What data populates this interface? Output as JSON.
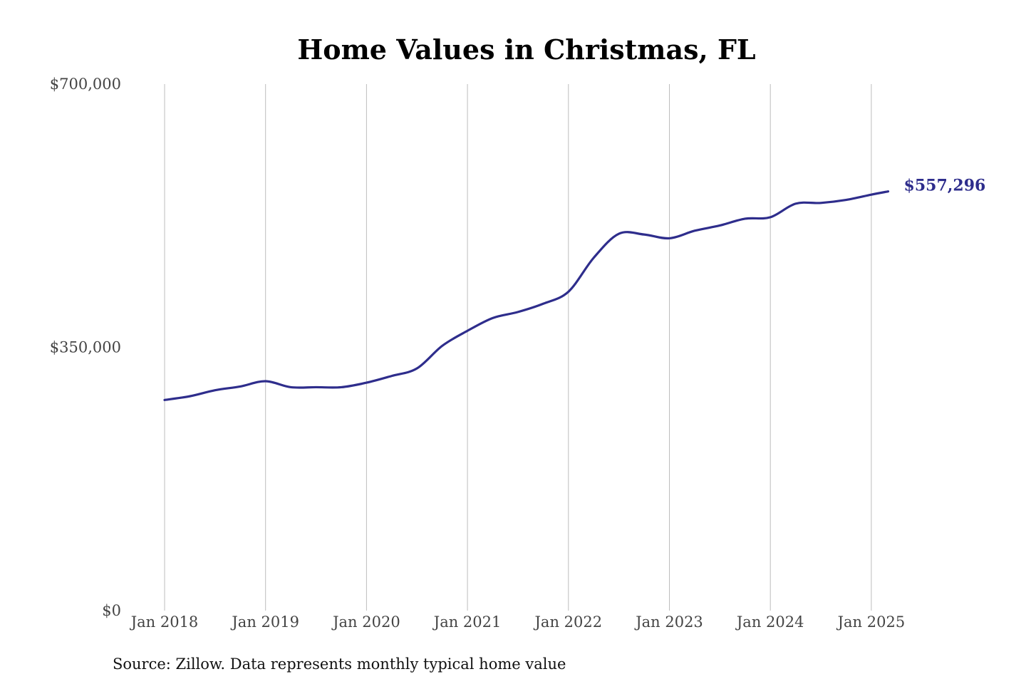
{
  "chart_data": {
    "type": "line",
    "title": "Home Values in Christmas, FL",
    "source": "Source: Zillow. Data represents monthly typical home value",
    "xlabel": "",
    "ylabel": "",
    "ylim": [
      0,
      700000
    ],
    "yticks": [
      {
        "value": 0,
        "label": "$0"
      },
      {
        "value": 350000,
        "label": "$350,000"
      },
      {
        "value": 700000,
        "label": "$700,000"
      }
    ],
    "xticks": [
      {
        "date": "2018-01",
        "label": "Jan 2018"
      },
      {
        "date": "2019-01",
        "label": "Jan 2019"
      },
      {
        "date": "2020-01",
        "label": "Jan 2020"
      },
      {
        "date": "2021-01",
        "label": "Jan 2021"
      },
      {
        "date": "2022-01",
        "label": "Jan 2022"
      },
      {
        "date": "2023-01",
        "label": "Jan 2023"
      },
      {
        "date": "2024-01",
        "label": "Jan 2024"
      },
      {
        "date": "2025-01",
        "label": "Jan 2025"
      }
    ],
    "grid": {
      "vertical": true,
      "horizontal": false
    },
    "line_color": "#2e2d8c",
    "end_label": "$557,296",
    "series": [
      {
        "x": [
          "2018-01",
          "2018-04",
          "2018-07",
          "2018-10",
          "2019-01",
          "2019-04",
          "2019-07",
          "2019-10",
          "2020-01",
          "2020-04",
          "2020-07",
          "2020-10",
          "2021-01",
          "2021-04",
          "2021-07",
          "2021-10",
          "2022-01",
          "2022-04",
          "2022-07",
          "2022-10",
          "2023-01",
          "2023-04",
          "2023-07",
          "2023-10",
          "2024-01",
          "2024-04",
          "2024-07",
          "2024-10",
          "2025-01",
          "2025-03"
        ],
        "values": [
          280000,
          285000,
          293000,
          298000,
          305000,
          297000,
          297000,
          297000,
          303000,
          312000,
          322000,
          352000,
          372000,
          389000,
          397000,
          408000,
          424000,
          469000,
          501000,
          500000,
          495000,
          505000,
          512000,
          521000,
          523000,
          541000,
          542000,
          546000,
          553000,
          557296
        ]
      }
    ]
  }
}
